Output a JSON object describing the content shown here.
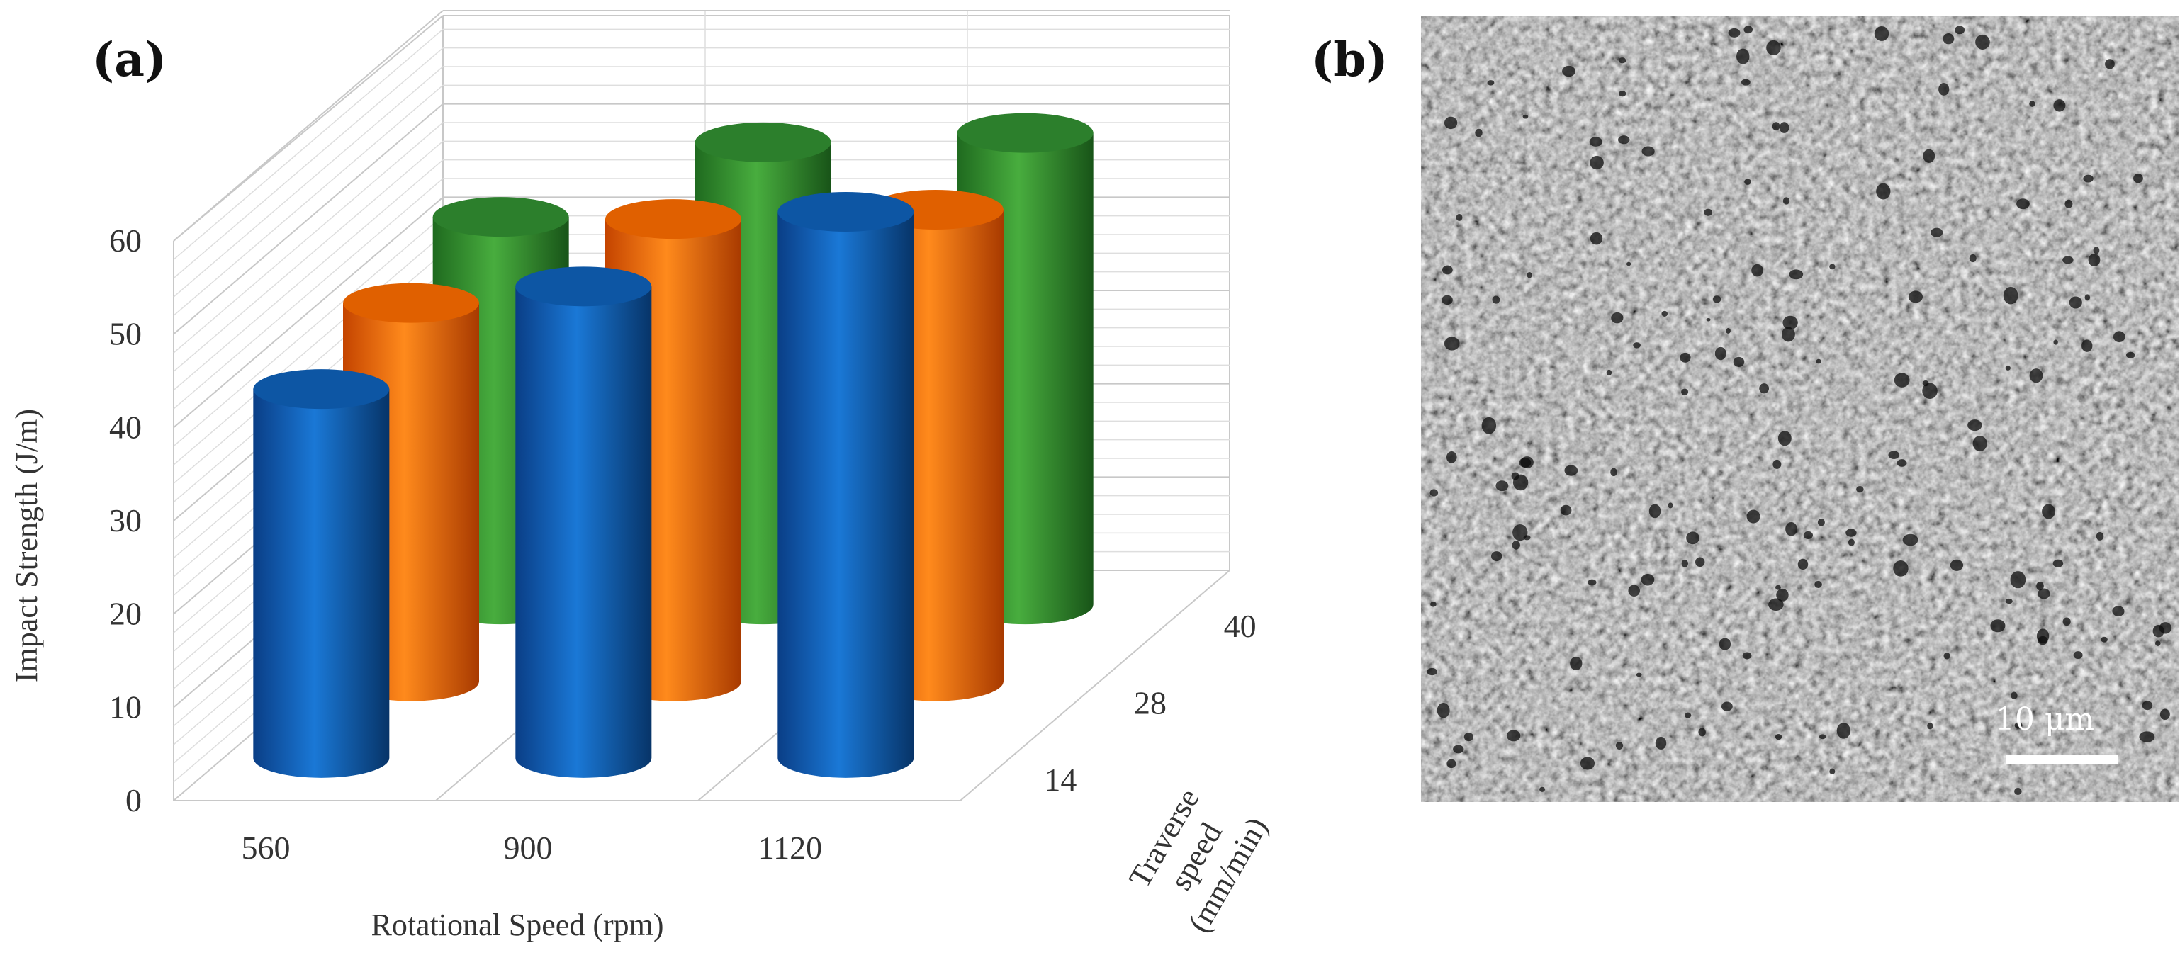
{
  "panels": {
    "a_label": "(a)",
    "b_label": "(b)"
  },
  "chart_data": {
    "type": "bar",
    "style": "3d-cylinder",
    "title": "",
    "xlabel": "Rotational Speed (rpm)",
    "ylabel": "Impact Strength (J/m)",
    "zlabel_lines": [
      "Traverse",
      "speed",
      "(mm/min)"
    ],
    "categories": [
      "560",
      "900",
      "1120"
    ],
    "depth_categories": [
      "14",
      "28",
      "40"
    ],
    "ylim": [
      0,
      60
    ],
    "yticks": [
      "0",
      "10",
      "20",
      "30",
      "40",
      "50",
      "60"
    ],
    "grid": true,
    "series": [
      {
        "name": "14",
        "color": "#0b5fb4",
        "values": [
          40,
          51,
          59
        ]
      },
      {
        "name": "28",
        "color": "#f26a00",
        "values": [
          41,
          50,
          51
        ]
      },
      {
        "name": "40",
        "color": "#2e8b2e",
        "values": [
          42,
          50,
          51
        ]
      }
    ]
  },
  "sem": {
    "scale_label": "10 μm"
  }
}
